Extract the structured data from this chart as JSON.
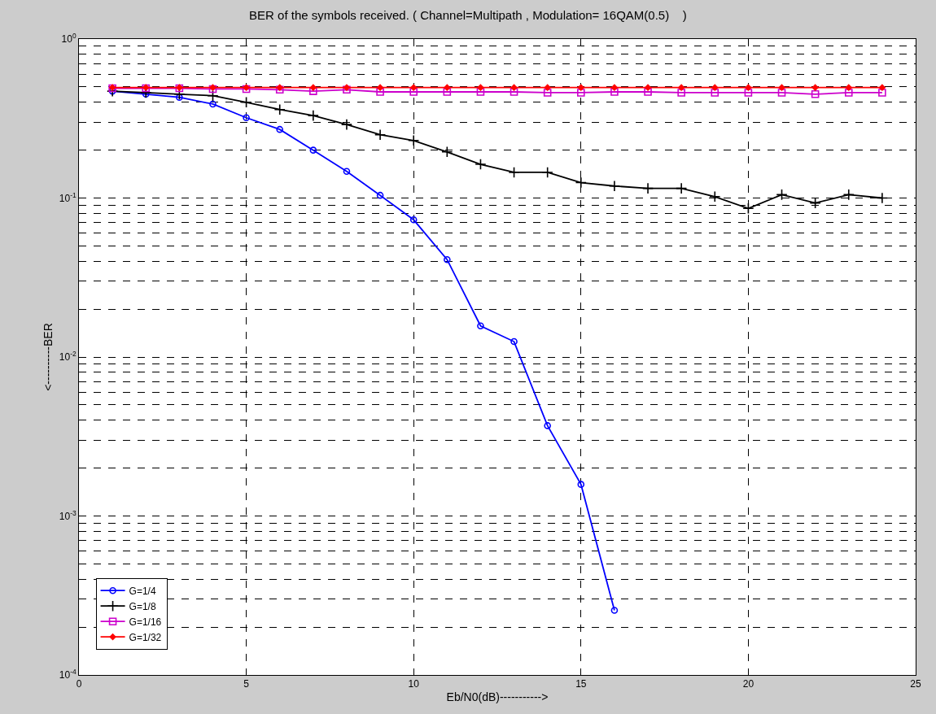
{
  "chart_data": {
    "type": "line",
    "title": "BER of the symbols received. ( Channel=Multipath , Modulation= 16QAM(0.5)    )",
    "xlabel": "Eb/N0(dB)----------->",
    "ylabel": "<----------BER",
    "log": "y",
    "grid": true,
    "legend": "bottom left",
    "line_style": "solid",
    "xlim": [
      0,
      25
    ],
    "xticks": [
      0,
      5,
      10,
      15,
      20,
      25
    ],
    "ylim": [
      0.0001,
      1
    ],
    "yticks": [
      {
        "value": 0.0001,
        "label": "10$^{-4}$"
      },
      {
        "value": 0.001,
        "label": "10$^{-3}$"
      },
      {
        "value": 0.01,
        "label": "10$^{-2}$"
      },
      {
        "value": 0.1,
        "label": "10$^{-1}$"
      },
      {
        "value": 1,
        "label": "10$^{0}$"
      }
    ],
    "series": [
      {
        "name": "G=1/4",
        "color": "#0000ff",
        "marker": "circle",
        "x": [
          1,
          2,
          3,
          4,
          5,
          6,
          7,
          8,
          9,
          10,
          11,
          12,
          13,
          14,
          15,
          16
        ],
        "values": [
          0.47,
          0.45,
          0.43,
          0.39,
          0.32,
          0.27,
          0.2,
          0.147,
          0.104,
          0.073,
          0.041,
          0.0157,
          0.0125,
          0.0037,
          0.00158,
          0.000255
        ]
      },
      {
        "name": "G=1/8",
        "color": "#000000",
        "marker": "cross",
        "x": [
          1,
          2,
          3,
          4,
          5,
          6,
          7,
          8,
          9,
          10,
          11,
          12,
          13,
          14,
          15,
          16,
          17,
          18,
          19,
          20,
          21,
          22,
          23,
          24
        ],
        "values": [
          0.47,
          0.46,
          0.45,
          0.44,
          0.4,
          0.36,
          0.33,
          0.29,
          0.25,
          0.23,
          0.195,
          0.163,
          0.145,
          0.145,
          0.125,
          0.119,
          0.115,
          0.115,
          0.102,
          0.086,
          0.105,
          0.093,
          0.105,
          0.1
        ]
      },
      {
        "name": "G=1/16",
        "color": "#cc00cc",
        "marker": "square",
        "x": [
          1,
          2,
          3,
          4,
          5,
          6,
          7,
          8,
          9,
          10,
          11,
          12,
          13,
          14,
          15,
          16,
          17,
          18,
          19,
          20,
          21,
          22,
          23,
          24
        ],
        "values": [
          0.49,
          0.49,
          0.49,
          0.485,
          0.485,
          0.48,
          0.47,
          0.48,
          0.465,
          0.465,
          0.465,
          0.465,
          0.465,
          0.46,
          0.46,
          0.465,
          0.465,
          0.46,
          0.46,
          0.46,
          0.46,
          0.45,
          0.46,
          0.46
        ]
      },
      {
        "name": "G=1/32",
        "color": "#ff0000",
        "marker": "diamond",
        "x": [
          1,
          2,
          3,
          4,
          5,
          6,
          7,
          8,
          9,
          10,
          11,
          12,
          13,
          14,
          15,
          16,
          17,
          18,
          19,
          20,
          21,
          22,
          23,
          24
        ],
        "values": [
          0.495,
          0.495,
          0.495,
          0.495,
          0.495,
          0.495,
          0.495,
          0.495,
          0.495,
          0.495,
          0.495,
          0.495,
          0.495,
          0.495,
          0.495,
          0.495,
          0.495,
          0.495,
          0.495,
          0.495,
          0.495,
          0.495,
          0.495,
          0.495
        ]
      }
    ]
  }
}
